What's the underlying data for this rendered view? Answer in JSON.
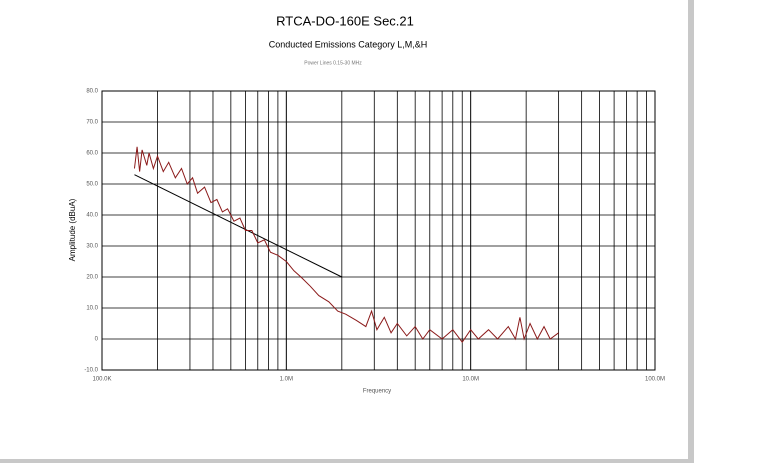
{
  "chart_data": {
    "type": "line",
    "title": "RTCA-DO-160E Sec.21",
    "subtitle": "Conducted Emissions Category L,M,&H",
    "note": "Power Lines 0.15-30 MHz",
    "x_label": "Frequency",
    "y_label": "Amplitude (dBuA)",
    "x_log": true,
    "grid": true,
    "xlim": [
      100000,
      100000000
    ],
    "ylim": [
      -10,
      80
    ],
    "xticks": [
      {
        "value": 100000,
        "label": "100.0K"
      },
      {
        "value": 1000000,
        "label": "1.0M"
      },
      {
        "value": 10000000,
        "label": "10.0M"
      },
      {
        "value": 100000000,
        "label": "100.0M"
      }
    ],
    "x_minor_grid": [
      200000,
      300000,
      400000,
      500000,
      600000,
      700000,
      800000,
      900000,
      2000000,
      3000000,
      4000000,
      5000000,
      6000000,
      7000000,
      8000000,
      9000000,
      20000000,
      30000000,
      40000000,
      50000000,
      60000000,
      70000000,
      80000000,
      90000000
    ],
    "yticks": [
      {
        "value": -10,
        "label": "-10.0"
      },
      {
        "value": 0,
        "label": "0"
      },
      {
        "value": 10,
        "label": "10.0"
      },
      {
        "value": 20,
        "label": "20.0"
      },
      {
        "value": 30,
        "label": "30.0"
      },
      {
        "value": 40,
        "label": "40.0"
      },
      {
        "value": 50,
        "label": "50.0"
      },
      {
        "value": 60,
        "label": "60.0"
      },
      {
        "value": 70,
        "label": "70.0"
      },
      {
        "value": 80,
        "label": "80.0"
      }
    ],
    "series": [
      {
        "color": "#000000",
        "x": [
          150000,
          2000000
        ],
        "values": [
          53,
          20
        ]
      },
      {
        "color": "#8b1a1a",
        "x": [
          150000,
          155000,
          160000,
          165000,
          175000,
          180000,
          190000,
          200000,
          215000,
          230000,
          250000,
          270000,
          290000,
          310000,
          330000,
          360000,
          390000,
          420000,
          450000,
          480000,
          520000,
          560000,
          600000,
          650000,
          700000,
          760000,
          820000,
          900000,
          1000000,
          1100000,
          1200000,
          1350000,
          1500000,
          1700000,
          1900000,
          2100000,
          2400000,
          2700000,
          2900000,
          3100000,
          3400000,
          3700000,
          4000000,
          4500000,
          5000000,
          5500000,
          6000000,
          7000000,
          8000000,
          9000000,
          10000000,
          11000000,
          12500000,
          14000000,
          16000000,
          17500000,
          18500000,
          19500000,
          21000000,
          23000000,
          25000000,
          27000000,
          30000000
        ],
        "values": [
          55,
          62,
          54,
          61,
          56,
          60,
          55,
          59,
          54,
          57,
          52,
          55,
          50,
          52,
          47,
          49,
          44,
          45,
          41,
          42,
          38,
          39,
          35,
          35,
          31,
          32,
          28,
          27,
          25,
          22,
          20,
          17,
          14,
          12,
          9,
          8,
          6,
          4,
          9,
          3,
          7,
          2,
          5,
          1,
          4,
          0,
          3,
          0,
          3,
          -1,
          3,
          0,
          3,
          0,
          4,
          0,
          7,
          0,
          5,
          0,
          4,
          0,
          2
        ]
      }
    ]
  }
}
